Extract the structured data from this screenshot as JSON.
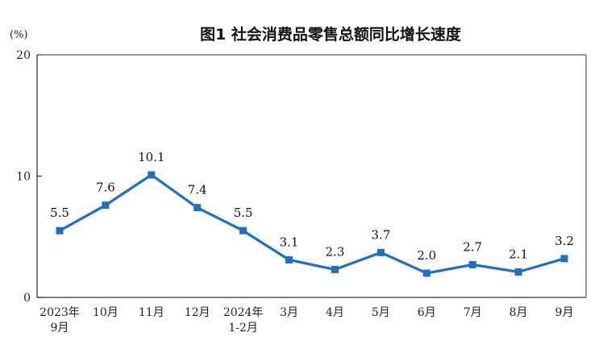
{
  "chart_data": {
    "type": "line",
    "title": "图1  社会消费品零售总额同比增长速度",
    "ylabel": "(%)",
    "xlabel": "",
    "ylim": [
      0,
      20
    ],
    "yticks": [
      "0",
      "10",
      "20"
    ],
    "grid": false,
    "categories": [
      [
        "2023年",
        "9月"
      ],
      [
        "10月"
      ],
      [
        "11月"
      ],
      [
        "12月"
      ],
      [
        "2024年",
        "1-2月"
      ],
      [
        "3月"
      ],
      [
        "4月"
      ],
      [
        "5月"
      ],
      [
        "6月"
      ],
      [
        "7月"
      ],
      [
        "8月"
      ],
      [
        "9月"
      ]
    ],
    "values": [
      5.5,
      7.6,
      10.1,
      7.4,
      5.5,
      3.1,
      2.3,
      3.7,
      2.0,
      2.7,
      2.1,
      3.2
    ],
    "value_labels": [
      "5.5",
      "7.6",
      "10.1",
      "7.4",
      "5.5",
      "3.1",
      "2.3",
      "3.7",
      "2.0",
      "2.7",
      "2.1",
      "3.2"
    ],
    "series_color": "#1f6fc5"
  }
}
